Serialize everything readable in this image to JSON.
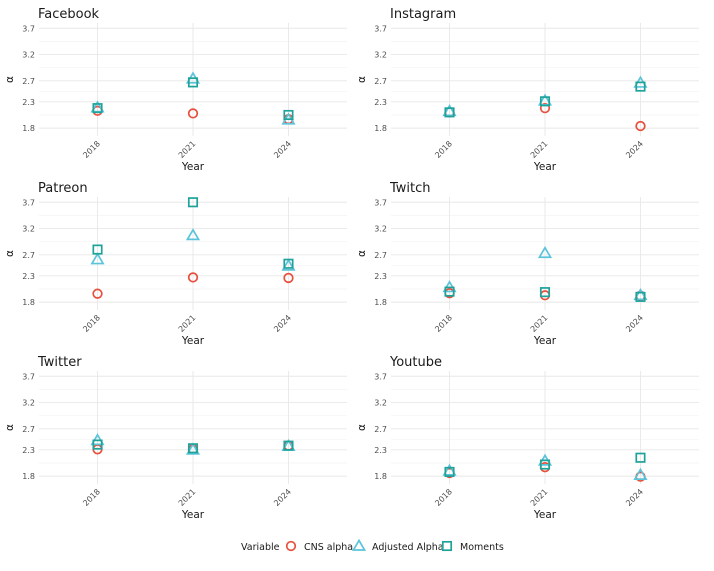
{
  "chart_data": {
    "type": "scatter",
    "legend": {
      "title": "Variable",
      "placement": "bottom",
      "entries": [
        {
          "name": "CNS alpha",
          "shape": "circle",
          "color": "#E8503E"
        },
        {
          "name": "Adjusted Alpha",
          "shape": "triangle",
          "color": "#5BC4DA"
        },
        {
          "name": "Moments",
          "shape": "square",
          "color": "#1FA29A"
        }
      ]
    },
    "x_ticks": [
      "2018",
      "2021",
      "2024"
    ],
    "y_ticks": [
      "1.8",
      "2.3",
      "2.7",
      "3.2",
      "3.7"
    ],
    "ylim": [
      1.65,
      3.8
    ],
    "xlabel": "Year",
    "ylabel": "α",
    "panels": [
      {
        "title": "Facebook",
        "series": [
          {
            "name": "CNS alpha",
            "values": [
              2.13,
              2.08,
              1.97
            ]
          },
          {
            "name": "Adjusted Alpha",
            "values": [
              2.19,
              2.74,
              1.96
            ]
          },
          {
            "name": "Moments",
            "values": [
              2.18,
              2.67,
              2.05
            ]
          }
        ]
      },
      {
        "title": "Instagram",
        "series": [
          {
            "name": "CNS alpha",
            "values": [
              2.1,
              2.18,
              1.84
            ]
          },
          {
            "name": "Adjusted Alpha",
            "values": [
              2.12,
              2.32,
              2.66
            ]
          },
          {
            "name": "Moments",
            "values": [
              2.1,
              2.31,
              2.59
            ]
          }
        ]
      },
      {
        "title": "Patreon",
        "series": [
          {
            "name": "CNS alpha",
            "values": [
              1.96,
              2.27,
              2.26
            ]
          },
          {
            "name": "Adjusted Alpha",
            "values": [
              2.61,
              3.07,
              2.49
            ]
          },
          {
            "name": "Moments",
            "values": [
              2.8,
              3.7,
              2.53
            ]
          }
        ]
      },
      {
        "title": "Twitch",
        "series": [
          {
            "name": "CNS alpha",
            "values": [
              1.97,
              1.93,
              1.92
            ]
          },
          {
            "name": "Adjusted Alpha",
            "values": [
              2.08,
              2.73,
              1.93
            ]
          },
          {
            "name": "Moments",
            "values": [
              2.0,
              1.99,
              1.9
            ]
          }
        ]
      },
      {
        "title": "Twitter",
        "series": [
          {
            "name": "CNS alpha",
            "values": [
              2.31,
              2.31,
              2.38
            ]
          },
          {
            "name": "Adjusted Alpha",
            "values": [
              2.48,
              2.3,
              2.37
            ]
          },
          {
            "name": "Moments",
            "values": [
              2.4,
              2.33,
              2.38
            ]
          }
        ]
      },
      {
        "title": "Youtube",
        "series": [
          {
            "name": "CNS alpha",
            "values": [
              1.86,
              1.97,
              1.79
            ]
          },
          {
            "name": "Adjusted Alpha",
            "values": [
              1.9,
              2.09,
              1.82
            ]
          },
          {
            "name": "Moments",
            "values": [
              1.88,
              2.02,
              2.15
            ]
          }
        ]
      }
    ]
  }
}
